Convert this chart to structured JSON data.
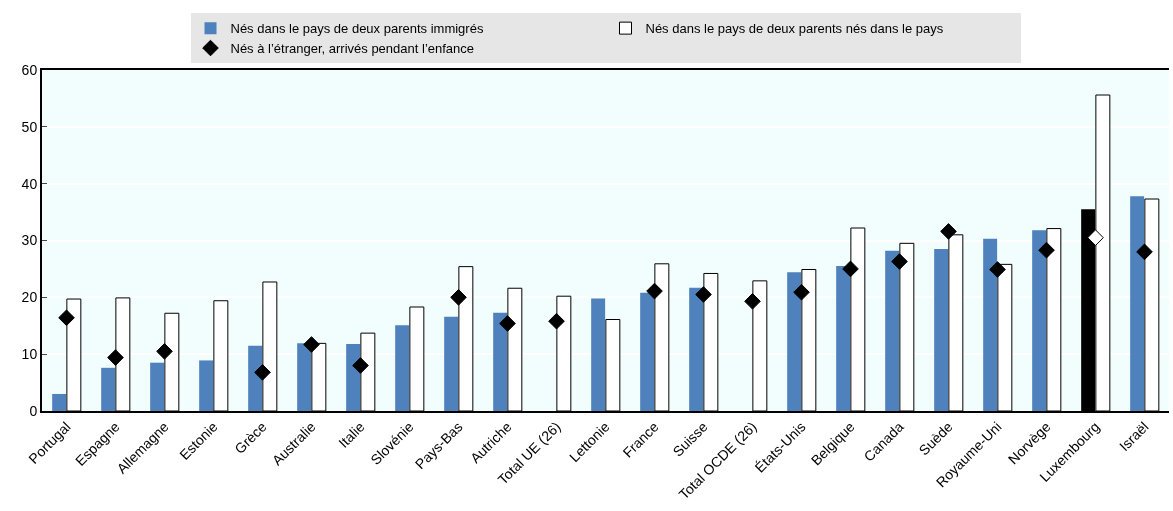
{
  "chart_data": {
    "type": "bar",
    "categories": [
      "Portugal",
      "Espagne",
      "Allemagne",
      "Estonie",
      "Grèce",
      "Australie",
      "Italie",
      "Slovénie",
      "Pays-Bas",
      "Autriche",
      "Total UE (26)",
      "Lettonie",
      "France",
      "Suisse",
      "Total OCDE (26)",
      "États-Unis",
      "Belgique",
      "Canada",
      "Suède",
      "Royaume-Uni",
      "Norvège",
      "Luxembourg",
      "Israël"
    ],
    "series": [
      {
        "name": "Nés dans le pays de deux parents immigrés",
        "color": "#4f81bd",
        "colors": [
          "#4f81bd",
          "#4f81bd",
          "#4f81bd",
          "#4f81bd",
          "#4f81bd",
          "#4f81bd",
          "#4f81bd",
          "#4f81bd",
          "#4f81bd",
          "#4f81bd",
          "#4f81bd",
          "#4f81bd",
          "#4f81bd",
          "#4f81bd",
          "#4f81bd",
          "#4f81bd",
          "#4f81bd",
          "#4f81bd",
          "#4f81bd",
          "#4f81bd",
          "#4f81bd",
          "#000000",
          "#4f81bd"
        ],
        "values": [
          3.0,
          7.6,
          8.5,
          8.9,
          11.5,
          11.9,
          11.8,
          15.1,
          16.6,
          17.3,
          null,
          19.8,
          20.8,
          21.7,
          null,
          24.4,
          25.5,
          28.2,
          28.5,
          30.3,
          31.8,
          35.5,
          37.8
        ]
      },
      {
        "name": "Nés dans le pays de deux parents nés dans le pays",
        "color": "#ffffff",
        "values": [
          19.7,
          19.9,
          17.2,
          19.4,
          22.7,
          11.9,
          13.7,
          18.3,
          25.4,
          21.6,
          20.2,
          16.1,
          25.9,
          24.2,
          22.9,
          24.9,
          32.2,
          29.5,
          31.0,
          25.8,
          32.1,
          55.6,
          37.3
        ]
      },
      {
        "type": "scatter",
        "name": "Nés à l’étranger, arrivés pendant l’enfance",
        "color": "#000000",
        "colors": [
          "#000000",
          "#000000",
          "#000000",
          "#000000",
          "#000000",
          "#000000",
          "#000000",
          "#000000",
          "#000000",
          "#000000",
          "#000000",
          "#000000",
          "#000000",
          "#000000",
          "#000000",
          "#000000",
          "#000000",
          "#000000",
          "#000000",
          "#000000",
          "#000000",
          "#ffffff",
          "#000000"
        ],
        "marker": "diamond",
        "values": [
          16.4,
          9.4,
          10.5,
          null,
          6.8,
          11.7,
          8.0,
          null,
          20.0,
          15.4,
          15.8,
          null,
          21.1,
          20.5,
          19.3,
          20.9,
          25.0,
          26.3,
          31.6,
          24.9,
          28.3,
          30.5,
          28.0
        ]
      }
    ],
    "ylim": [
      0,
      60
    ],
    "yticks": [
      0,
      10,
      20,
      30,
      40,
      50,
      60
    ],
    "grid": "y",
    "legend": "top"
  }
}
